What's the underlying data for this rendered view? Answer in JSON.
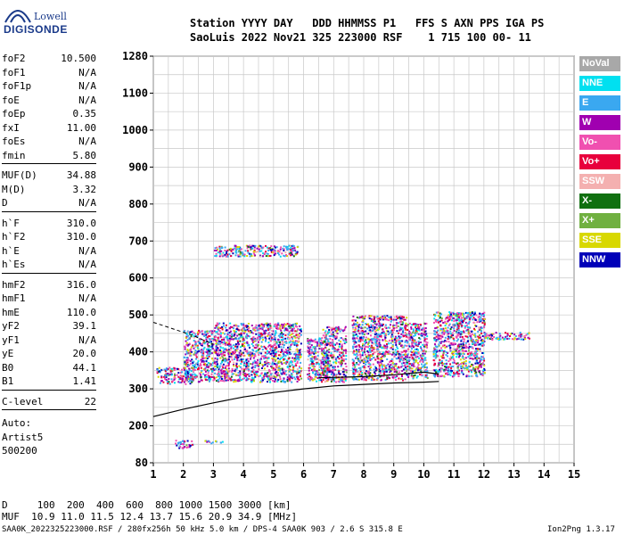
{
  "logo": {
    "brand": "Lowell",
    "product": "DIGISONDE"
  },
  "header": {
    "line1": "Station YYYY DAY   DDD HHMMSS P1   FFS S AXN PPS IGA PS",
    "line2": "SaoLuis 2022 Nov21 325 223000 RSF    1 715 100 00- 11"
  },
  "sidebar": {
    "groups": [
      [
        [
          "foF2",
          "10.500"
        ],
        [
          "foF1",
          "N/A"
        ],
        [
          "foF1p",
          "N/A"
        ],
        [
          "foE",
          "N/A"
        ],
        [
          "foEp",
          "0.35"
        ],
        [
          "fxI",
          "11.00"
        ],
        [
          "foEs",
          "N/A"
        ],
        [
          "fmin",
          "5.80"
        ]
      ],
      [
        [
          "MUF(D)",
          "34.88"
        ],
        [
          "M(D)",
          "3.32"
        ],
        [
          "D",
          "N/A"
        ]
      ],
      [
        [
          "h`F",
          "310.0"
        ],
        [
          "h`F2",
          "310.0"
        ],
        [
          "h`E",
          "N/A"
        ],
        [
          "h`Es",
          "N/A"
        ]
      ],
      [
        [
          "hmF2",
          "316.0"
        ],
        [
          "hmF1",
          "N/A"
        ],
        [
          "hmE",
          "110.0"
        ],
        [
          "yF2",
          "39.1"
        ],
        [
          "yF1",
          "N/A"
        ],
        [
          "yE",
          "20.0"
        ],
        [
          "B0",
          "44.1"
        ],
        [
          "B1",
          "1.41"
        ]
      ],
      [
        [
          "C-level",
          "22"
        ]
      ]
    ],
    "auto": [
      "Auto:",
      "Artist5",
      "500200"
    ]
  },
  "footer": {
    "d_row": "D     100  200  400  600  800 1000 1500 3000 [km]",
    "muf_row": "MUF  10.9 11.0 11.5 12.4 13.7 15.6 20.9 34.9 [MHz]",
    "file_info": "SAA0K_2022325223000.RSF / 280fx256h 50 kHz 5.0 km / DPS-4 SAA0K 903 / 2.6 S 315.8 E",
    "version": "Ion2Png 1.3.17"
  },
  "legend": [
    {
      "label": "NoVal",
      "color": "#a8a8a8"
    },
    {
      "label": "NNE",
      "color": "#00e0f0"
    },
    {
      "label": "E",
      "color": "#3aa8f0"
    },
    {
      "label": "W",
      "color": "#a000b0"
    },
    {
      "label": "Vo-",
      "color": "#f050b0"
    },
    {
      "label": "Vo+",
      "color": "#e8003c"
    },
    {
      "label": "SSW",
      "color": "#f4b0b0"
    },
    {
      "label": "X-",
      "color": "#107010"
    },
    {
      "label": "X+",
      "color": "#70b040"
    },
    {
      "label": "SSE",
      "color": "#d8d800"
    },
    {
      "label": "NNW",
      "color": "#0000b8"
    }
  ],
  "chart_data": {
    "type": "scatter",
    "x_ticks": [
      "1",
      "2",
      "3",
      "4",
      "5",
      "6",
      "7",
      "8",
      "9",
      "10",
      "11",
      "12",
      "13",
      "14",
      "15"
    ],
    "y_ticks": [
      "80",
      "200",
      "300",
      "400",
      "500",
      "600",
      "700",
      "800",
      "900",
      "1000",
      "1100",
      "1280"
    ],
    "y_tick_values": [
      80,
      200,
      300,
      400,
      500,
      600,
      700,
      800,
      900,
      1000,
      1100,
      1280
    ],
    "xlim": [
      1,
      15
    ],
    "grid": true,
    "echo_clusters": [
      {
        "x": [
          1.1,
          2.3
        ],
        "y": [
          315,
          360
        ]
      },
      {
        "x": [
          2.0,
          3.0
        ],
        "y": [
          320,
          460
        ]
      },
      {
        "x": [
          3.0,
          5.9
        ],
        "y": [
          320,
          480
        ]
      },
      {
        "x": [
          3.0,
          5.8
        ],
        "y": [
          660,
          690
        ]
      },
      {
        "x": [
          6.1,
          6.8
        ],
        "y": [
          320,
          440
        ]
      },
      {
        "x": [
          6.6,
          7.4
        ],
        "y": [
          320,
          470
        ]
      },
      {
        "x": [
          7.6,
          9.4
        ],
        "y": [
          325,
          500
        ]
      },
      {
        "x": [
          9.4,
          10.1
        ],
        "y": [
          330,
          480
        ]
      },
      {
        "x": [
          10.3,
          12.0
        ],
        "y": [
          335,
          510
        ]
      },
      {
        "x": [
          12.0,
          13.5
        ],
        "y": [
          435,
          455
        ]
      },
      {
        "x": [
          1.7,
          2.3
        ],
        "y": [
          130,
          155
        ]
      },
      {
        "x": [
          2.7,
          3.3
        ],
        "y": [
          145,
          155
        ]
      }
    ],
    "profile_line": [
      [
        1,
        225
      ],
      [
        2,
        245
      ],
      [
        3,
        262
      ],
      [
        4,
        278
      ],
      [
        5,
        290
      ],
      [
        6,
        300
      ],
      [
        7,
        308
      ],
      [
        8,
        312
      ],
      [
        9,
        316
      ],
      [
        10,
        318
      ],
      [
        10.5,
        320
      ]
    ],
    "trace_line": [
      [
        6.5,
        330
      ],
      [
        8,
        333
      ],
      [
        9,
        338
      ],
      [
        10,
        345
      ],
      [
        10.5,
        340
      ]
    ],
    "dashed_line": [
      [
        1,
        480
      ],
      [
        2.3,
        445
      ],
      [
        3,
        420
      ]
    ]
  }
}
